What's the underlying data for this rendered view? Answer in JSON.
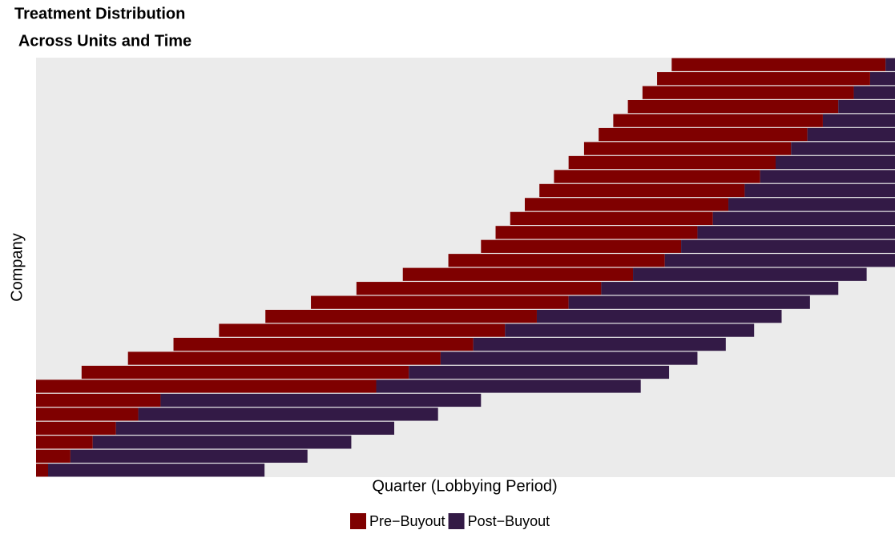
{
  "chart_data": {
    "type": "treatment",
    "title": "Treatment Distribution\n Across Units and Time",
    "xlabel": "Quarter (Lobbying Period)",
    "ylabel": "Company",
    "xlim": [
      0,
      100
    ],
    "series": [
      {
        "name": "Pre−Buyout",
        "color": "#7f0000"
      },
      {
        "name": "Post−Buyout",
        "color": "#331a46"
      }
    ],
    "pre_start": [
      74.0,
      72.3,
      70.6,
      68.9,
      67.2,
      65.5,
      63.8,
      62.0,
      60.3,
      58.6,
      56.9,
      55.2,
      53.5,
      51.8,
      48.0,
      42.7,
      37.3,
      32.0,
      26.7,
      21.3,
      16.0,
      10.7,
      5.3,
      0,
      0,
      0,
      0,
      0,
      0,
      0
    ],
    "post_start": [
      98.9,
      97.1,
      95.2,
      93.4,
      91.6,
      89.8,
      87.9,
      86.1,
      84.3,
      82.5,
      80.6,
      78.8,
      77.0,
      75.1,
      73.2,
      69.5,
      65.8,
      62.0,
      58.3,
      54.6,
      50.9,
      47.1,
      43.4,
      39.6,
      14.5,
      11.9,
      9.3,
      6.6,
      4.0,
      1.4
    ],
    "end": [
      100,
      100,
      100,
      100,
      100,
      100,
      100,
      100,
      100,
      100,
      100,
      100,
      100,
      100,
      100,
      96.7,
      93.4,
      90.1,
      86.8,
      83.6,
      80.3,
      77.0,
      73.7,
      70.4,
      51.8,
      46.8,
      41.7,
      36.7,
      31.6,
      26.6
    ]
  }
}
